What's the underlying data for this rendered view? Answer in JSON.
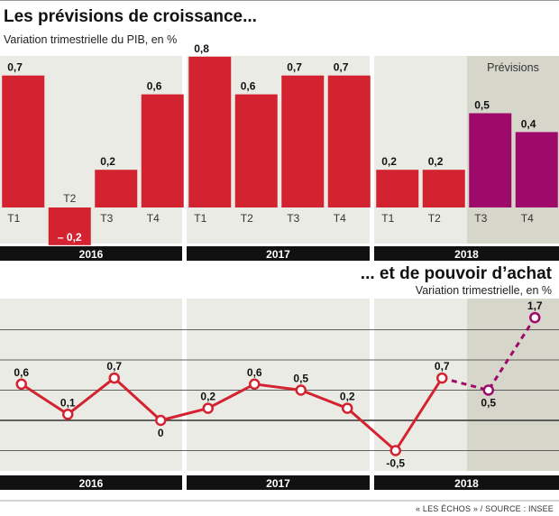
{
  "header": {
    "title": "Les prévisions de croissance...",
    "subtitle": "Variation trimestrielle du PIB, en %"
  },
  "header2": {
    "title": "... et de pouvoir d’achat",
    "subtitle": "Variation trimestrielle, en %"
  },
  "source": "« LES ÉCHOS » / SOURCE : INSEE",
  "colors": {
    "actual": "#d42330",
    "forecast": "#9e0a6a",
    "panel_bg": "#ebebe5",
    "forecast_bg": "#d7d6cb",
    "year_bar": "#111111"
  },
  "chart_data": [
    {
      "type": "bar",
      "title": "Les prévisions de croissance...",
      "subtitle": "Variation trimestrielle du PIB, en %",
      "years": [
        "2016",
        "2017",
        "2018"
      ],
      "quarters": [
        "T1",
        "T2",
        "T3",
        "T4"
      ],
      "forecast_label": "Prévisions",
      "values": [
        0.7,
        -0.2,
        0.2,
        0.6,
        0.8,
        0.6,
        0.7,
        0.7,
        0.2,
        0.2,
        0.5,
        0.4
      ],
      "value_labels": [
        "0,7",
        "– 0,2",
        "0,2",
        "0,6",
        "0,8",
        "0,6",
        "0,7",
        "0,7",
        "0,2",
        "0,2",
        "0,5",
        "0,4"
      ],
      "forecast": [
        false,
        false,
        false,
        false,
        false,
        false,
        false,
        false,
        false,
        false,
        true,
        true
      ],
      "ylim": [
        -0.2,
        0.8
      ]
    },
    {
      "type": "line",
      "title": "... et de pouvoir d’achat",
      "subtitle": "Variation trimestrielle, en %",
      "years": [
        "2016",
        "2017",
        "2018"
      ],
      "values": [
        0.6,
        0.1,
        0.7,
        0,
        0.2,
        0.6,
        0.5,
        0.2,
        -0.5,
        0.7,
        0.5,
        1.7
      ],
      "value_labels": [
        "0,6",
        "0,1",
        "0,7",
        "0",
        "0,2",
        "0,6",
        "0,5",
        "0,2",
        "-0,5",
        "0,7",
        "0,5",
        "1,7"
      ],
      "forecast": [
        false,
        false,
        false,
        false,
        false,
        false,
        false,
        false,
        false,
        false,
        true,
        true
      ],
      "ylim": [
        -0.7,
        2.1
      ]
    }
  ]
}
